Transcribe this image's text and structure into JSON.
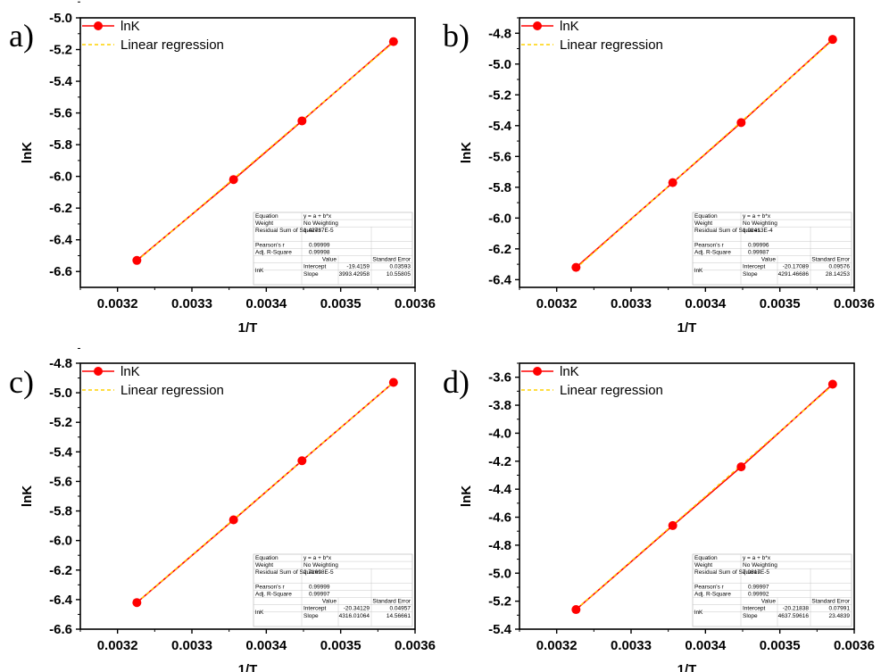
{
  "chart_data": [
    {
      "type": "line",
      "panel_label": "a)",
      "xlabel": "1/T",
      "ylabel": "lnK",
      "xlim": [
        0.00315,
        0.0036
      ],
      "ylim": [
        -6.7,
        -5.0
      ],
      "xticks": [
        "0.0032",
        "0.0033",
        "0.0034",
        "0.0035",
        "0.0036"
      ],
      "yticks": [
        "-5.0",
        "-5.2",
        "-5.4",
        "-5.6",
        "-5.8",
        "-6.0",
        "-6.2",
        "-6.4",
        "-6.6"
      ],
      "x": [
        0.003226,
        0.003356,
        0.003448,
        0.003571
      ],
      "series": [
        {
          "name": "lnK",
          "y": [
            -6.53,
            -6.02,
            -5.65,
            -5.15
          ],
          "color": "#ff0000"
        },
        {
          "name": "Linear regression",
          "color": "#ffd200",
          "intercept": -19.4159,
          "slope": 3993.42958
        }
      ],
      "legend_position": "top-left",
      "fit_table": {
        "equation_label": "Equation",
        "equation": "y = a + b*x",
        "weight_label": "Weight",
        "weight": "No Weighting",
        "rss_label": "Residual Sum of Squares",
        "rss": "1.42737E-5",
        "pearson_label": "Pearson's r",
        "pearson": "0.99999",
        "r2_label": "Adj. R-Square",
        "r2": "0.99998",
        "value_header": "Value",
        "se_header": "Standard Error",
        "row_name": "lnK",
        "intercept_label": "Intercept",
        "intercept": "-19.4159",
        "intercept_se": "0.03593",
        "slope_label": "Slope",
        "slope": "3993.42958",
        "slope_se": "10.55805"
      }
    },
    {
      "type": "line",
      "panel_label": "b)",
      "xlabel": "1/T",
      "ylabel": "lnK",
      "xlim": [
        0.00315,
        0.0036
      ],
      "ylim": [
        -6.45,
        -4.7
      ],
      "xticks": [
        "0.0032",
        "0.0033",
        "0.0034",
        "0.0035",
        "0.0036"
      ],
      "yticks": [
        "-4.8",
        "-5.0",
        "-5.2",
        "-5.4",
        "-5.6",
        "-5.8",
        "-6.0",
        "-6.2",
        "-6.4"
      ],
      "x": [
        0.003226,
        0.003356,
        0.003448,
        0.003571
      ],
      "series": [
        {
          "name": "lnK",
          "y": [
            -6.32,
            -5.77,
            -5.38,
            -4.84
          ],
          "color": "#ff0000"
        },
        {
          "name": "Linear regression",
          "color": "#ffd200",
          "intercept": -20.17089,
          "slope": 4291.46686
        }
      ],
      "legend_position": "top-left",
      "fit_table": {
        "equation_label": "Equation",
        "equation": "y = a + b*x",
        "weight_label": "Weight",
        "weight": "No Weighting",
        "rss_label": "Residual Sum of Squares",
        "rss": "1.01413E-4",
        "pearson_label": "Pearson's r",
        "pearson": "0.99996",
        "r2_label": "Adj. R-Square",
        "r2": "0.99987",
        "value_header": "Value",
        "se_header": "Standard Error",
        "row_name": "lnK",
        "intercept_label": "Intercept",
        "intercept": "-20.17089",
        "intercept_se": "0.09576",
        "slope_label": "Slope",
        "slope": "4291.46686",
        "slope_se": "28.14253"
      }
    },
    {
      "type": "line",
      "panel_label": "c)",
      "xlabel": "1/T",
      "ylabel": "lnK",
      "xlim": [
        0.00315,
        0.0036
      ],
      "ylim": [
        -6.6,
        -4.8
      ],
      "xticks": [
        "0.0032",
        "0.0033",
        "0.0034",
        "0.0035",
        "0.0036"
      ],
      "yticks": [
        "-4.8",
        "-5.0",
        "-5.2",
        "-5.4",
        "-5.6",
        "-5.8",
        "-6.0",
        "-6.2",
        "-6.4",
        "-6.6"
      ],
      "x": [
        0.003226,
        0.003356,
        0.003448,
        0.003571
      ],
      "series": [
        {
          "name": "lnK",
          "y": [
            -6.42,
            -5.86,
            -5.46,
            -4.93
          ],
          "color": "#ff0000"
        },
        {
          "name": "Linear regression",
          "color": "#ffd200",
          "intercept": -20.34129,
          "slope": 4316.01064
        }
      ],
      "legend_position": "top-left",
      "fit_table": {
        "equation_label": "Equation",
        "equation": "y = a + b*x",
        "weight_label": "Weight",
        "weight": "No Weighting",
        "rss_label": "Residual Sum of Squares",
        "rss": "2.71698E-5",
        "pearson_label": "Pearson's r",
        "pearson": "0.99999",
        "r2_label": "Adj. R-Square",
        "r2": "0.99997",
        "value_header": "Value",
        "se_header": "Standard Error",
        "row_name": "lnK",
        "intercept_label": "Intercept",
        "intercept": "-20.34129",
        "intercept_se": "0.04957",
        "slope_label": "Slope",
        "slope": "4316.01064",
        "slope_se": "14.56661"
      }
    },
    {
      "type": "line",
      "panel_label": "d)",
      "xlabel": "1/T",
      "ylabel": "lnK",
      "xlim": [
        0.00315,
        0.0036
      ],
      "ylim": [
        -5.4,
        -3.5
      ],
      "xticks": [
        "0.0032",
        "0.0033",
        "0.0034",
        "0.0035",
        "0.0036"
      ],
      "yticks": [
        "-3.6",
        "-3.8",
        "-4.0",
        "-4.2",
        "-4.4",
        "-4.6",
        "-4.8",
        "-5.0",
        "-5.2",
        "-5.4"
      ],
      "x": [
        0.003226,
        0.003356,
        0.003448,
        0.003571
      ],
      "series": [
        {
          "name": "lnK",
          "y": [
            -5.26,
            -4.66,
            -4.24,
            -3.65
          ],
          "color": "#ff0000"
        },
        {
          "name": "Linear regression",
          "color": "#ffd200",
          "intercept": -20.21838,
          "slope": 4637.59616
        }
      ],
      "legend_position": "top-left",
      "fit_table": {
        "equation_label": "Equation",
        "equation": "y = a + b*x",
        "weight_label": "Weight",
        "weight": "No Weighting",
        "rss_label": "Residual Sum of Squares",
        "rss": "7.0617E-5",
        "pearson_label": "Pearson's r",
        "pearson": "0.99997",
        "r2_label": "Adj. R-Square",
        "r2": "0.99992",
        "value_header": "Value",
        "se_header": "Standard Error",
        "row_name": "lnK",
        "intercept_label": "Intercept",
        "intercept": "-20.21838",
        "intercept_se": "0.07991",
        "slope_label": "Slope",
        "slope": "4637.59616",
        "slope_se": "23.4839"
      }
    }
  ]
}
